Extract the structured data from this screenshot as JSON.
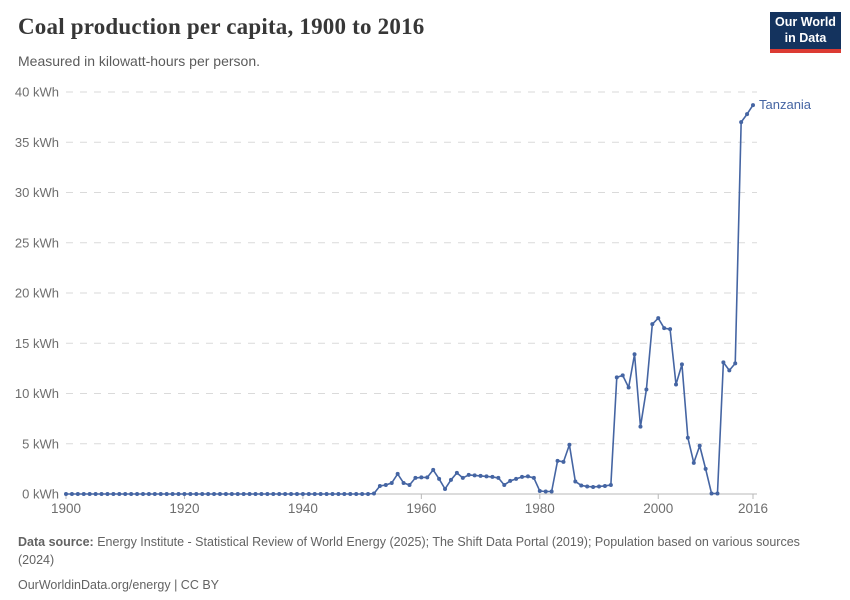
{
  "header": {
    "title": "Coal production per capita, 1900 to 2016",
    "subtitle": "Measured in kilowatt-hours per person."
  },
  "logo": {
    "line1": "Our World",
    "line2": "in Data"
  },
  "chart_data": {
    "type": "line",
    "title": "Coal production per capita, 1900 to 2016",
    "ylabel": "kilowatt-hours per person",
    "xlim": [
      1900,
      2016
    ],
    "ylim": [
      0,
      40
    ],
    "grid": "horizontal-dashed",
    "legend_position": "end-of-line",
    "x_ticks": [
      {
        "year": 1900,
        "label": "1900"
      },
      {
        "year": 1920,
        "label": "1920"
      },
      {
        "year": 1940,
        "label": "1940"
      },
      {
        "year": 1960,
        "label": "1960"
      },
      {
        "year": 1980,
        "label": "1980"
      },
      {
        "year": 2000,
        "label": "2000"
      },
      {
        "year": 2016,
        "label": "2016"
      }
    ],
    "y_ticks": [
      {
        "value": 0,
        "label": "0 kWh"
      },
      {
        "value": 5,
        "label": "5 kWh"
      },
      {
        "value": 10,
        "label": "10 kWh"
      },
      {
        "value": 15,
        "label": "15 kWh"
      },
      {
        "value": 20,
        "label": "20 kWh"
      },
      {
        "value": 25,
        "label": "25 kWh"
      },
      {
        "value": 30,
        "label": "30 kWh"
      },
      {
        "value": 35,
        "label": "35 kWh"
      },
      {
        "value": 40,
        "label": "40 kWh"
      }
    ],
    "series": [
      {
        "name": "Tanzania",
        "color": "#4565a3",
        "start_year": 1900,
        "end_year": 2016,
        "values": [
          0,
          0,
          0,
          0,
          0,
          0,
          0,
          0,
          0,
          0,
          0,
          0,
          0,
          0,
          0,
          0,
          0,
          0,
          0,
          0,
          0,
          0,
          0,
          0,
          0,
          0,
          0,
          0,
          0,
          0,
          0,
          0,
          0,
          0,
          0,
          0,
          0,
          0,
          0,
          0,
          0,
          0,
          0,
          0,
          0,
          0,
          0,
          0,
          0,
          0,
          0,
          0,
          0.05,
          0.8,
          0.9,
          1.1,
          2.0,
          1.1,
          0.9,
          1.6,
          1.65,
          1.65,
          2.4,
          1.5,
          0.5,
          1.4,
          2.1,
          1.6,
          1.9,
          1.85,
          1.8,
          1.75,
          1.7,
          1.6,
          0.9,
          1.3,
          1.5,
          1.7,
          1.75,
          1.6,
          0.3,
          0.25,
          0.25,
          3.3,
          3.2,
          4.9,
          1.25,
          0.85,
          0.75,
          0.7,
          0.75,
          0.8,
          0.9,
          11.6,
          11.8,
          10.6,
          13.9,
          6.7,
          10.4,
          16.9,
          17.5,
          16.5,
          16.4,
          10.9,
          12.9,
          5.6,
          3.1,
          4.8,
          2.5,
          0.05,
          0.05,
          13.1,
          12.3,
          13.0,
          37.0,
          37.8,
          38.7
        ]
      }
    ]
  },
  "footer": {
    "source_label": "Data source:",
    "source_text": "Energy Institute - Statistical Review of World Energy (2025); The Shift Data Portal (2019); Population based on various sources (2024)",
    "attribution": "OurWorldinData.org/energy | CC BY"
  },
  "colors": {
    "line": "#4565a3",
    "grid": "#dadada",
    "axis": "#b8b8b8",
    "tick_text": "#6e6e6e",
    "logo_bg": "#14335e",
    "logo_bar": "#dc3b33"
  }
}
